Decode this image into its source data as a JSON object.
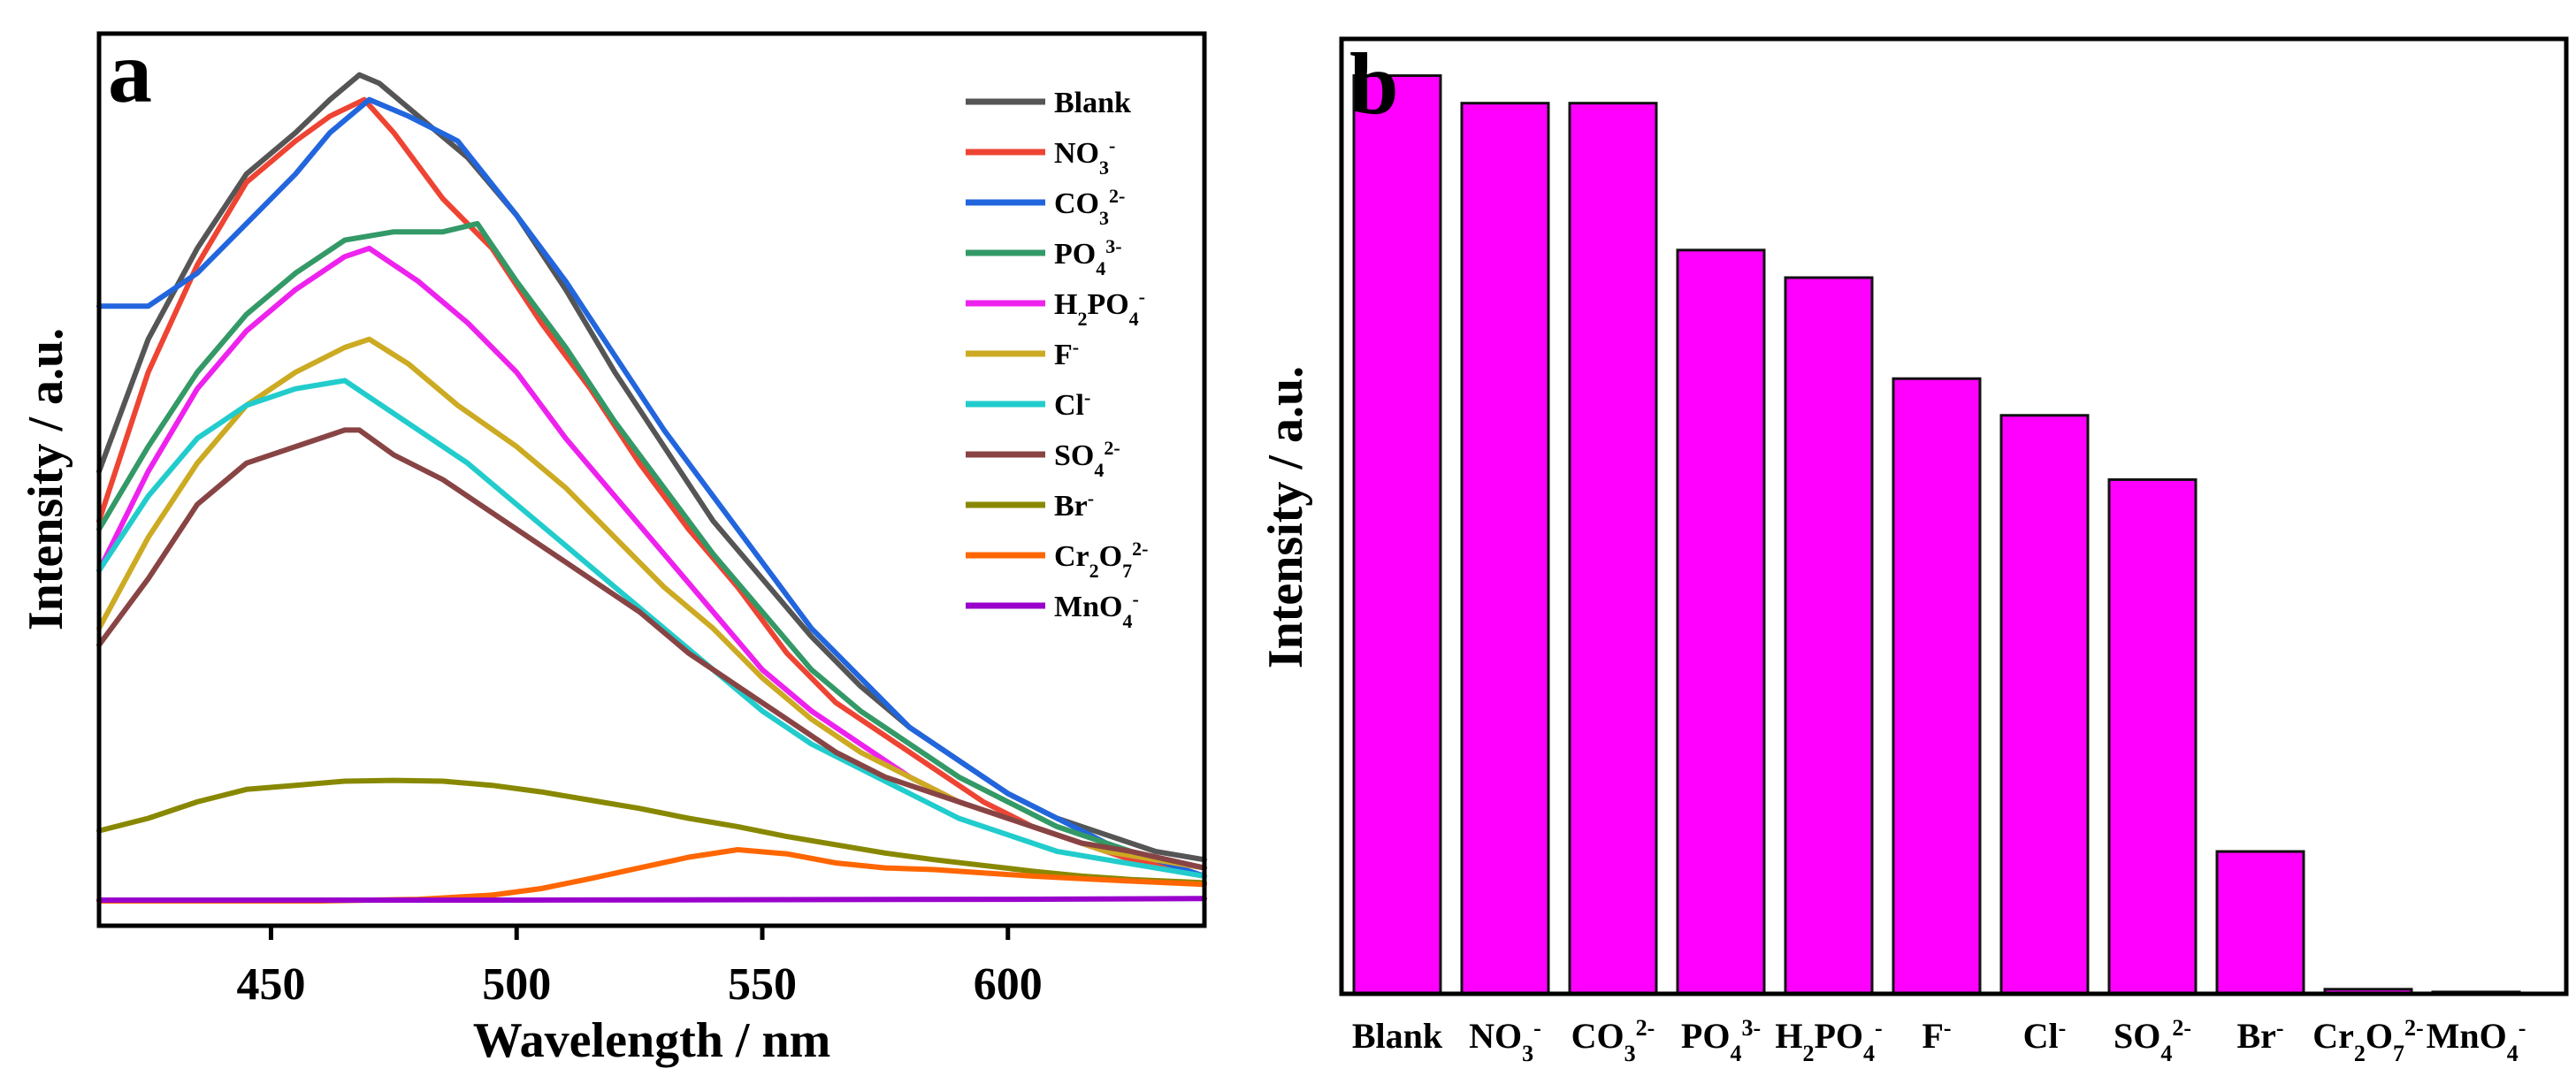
{
  "chart_data": [
    {
      "panel_label": "a",
      "type": "line",
      "xlabel": "Wavelength / nm",
      "ylabel": "Intensity / a.u.",
      "xlim": [
        415,
        640
      ],
      "ylim": [
        -0.03,
        1.05
      ],
      "x_ticks": [
        450,
        500,
        550,
        600
      ],
      "y_ticks_shown": false,
      "grid": false,
      "legend_position": "top-right",
      "series": [
        {
          "name": "Blank",
          "color": "#555555",
          "points": [
            [
              415,
              0.52
            ],
            [
              425,
              0.68
            ],
            [
              435,
              0.79
            ],
            [
              445,
              0.88
            ],
            [
              455,
              0.93
            ],
            [
              462,
              0.97
            ],
            [
              468,
              1.0
            ],
            [
              472,
              0.99
            ],
            [
              480,
              0.95
            ],
            [
              490,
              0.9
            ],
            [
              500,
              0.83
            ],
            [
              510,
              0.74
            ],
            [
              520,
              0.64
            ],
            [
              530,
              0.55
            ],
            [
              540,
              0.46
            ],
            [
              550,
              0.39
            ],
            [
              560,
              0.32
            ],
            [
              570,
              0.26
            ],
            [
              580,
              0.21
            ],
            [
              590,
              0.17
            ],
            [
              600,
              0.13
            ],
            [
              610,
              0.1
            ],
            [
              620,
              0.08
            ],
            [
              630,
              0.06
            ],
            [
              640,
              0.05
            ]
          ]
        },
        {
          "name": "NO3-",
          "color": "#ee4433",
          "points": [
            [
              415,
              0.46
            ],
            [
              425,
              0.64
            ],
            [
              435,
              0.77
            ],
            [
              445,
              0.87
            ],
            [
              455,
              0.92
            ],
            [
              462,
              0.95
            ],
            [
              469,
              0.97
            ],
            [
              475,
              0.93
            ],
            [
              485,
              0.85
            ],
            [
              495,
              0.79
            ],
            [
              505,
              0.7
            ],
            [
              515,
              0.62
            ],
            [
              525,
              0.53
            ],
            [
              535,
              0.45
            ],
            [
              545,
              0.38
            ],
            [
              555,
              0.3
            ],
            [
              565,
              0.24
            ],
            [
              575,
              0.2
            ],
            [
              585,
              0.16
            ],
            [
              595,
              0.12
            ],
            [
              605,
              0.09
            ],
            [
              615,
              0.07
            ],
            [
              625,
              0.05
            ],
            [
              640,
              0.03
            ]
          ]
        },
        {
          "name": "CO3 2-",
          "color": "#2266dd",
          "points": [
            [
              415,
              0.72
            ],
            [
              425,
              0.72
            ],
            [
              435,
              0.76
            ],
            [
              445,
              0.82
            ],
            [
              455,
              0.88
            ],
            [
              462,
              0.93
            ],
            [
              470,
              0.97
            ],
            [
              478,
              0.95
            ],
            [
              488,
              0.92
            ],
            [
              500,
              0.83
            ],
            [
              510,
              0.75
            ],
            [
              520,
              0.66
            ],
            [
              530,
              0.57
            ],
            [
              540,
              0.49
            ],
            [
              550,
              0.41
            ],
            [
              560,
              0.33
            ],
            [
              570,
              0.27
            ],
            [
              580,
              0.21
            ],
            [
              590,
              0.17
            ],
            [
              600,
              0.13
            ],
            [
              610,
              0.1
            ],
            [
              620,
              0.07
            ],
            [
              630,
              0.05
            ],
            [
              640,
              0.03
            ]
          ]
        },
        {
          "name": "PO4 3-",
          "color": "#339966",
          "points": [
            [
              415,
              0.45
            ],
            [
              425,
              0.55
            ],
            [
              435,
              0.64
            ],
            [
              445,
              0.71
            ],
            [
              455,
              0.76
            ],
            [
              465,
              0.8
            ],
            [
              475,
              0.81
            ],
            [
              485,
              0.81
            ],
            [
              492,
              0.82
            ],
            [
              500,
              0.75
            ],
            [
              510,
              0.67
            ],
            [
              520,
              0.58
            ],
            [
              530,
              0.5
            ],
            [
              540,
              0.42
            ],
            [
              550,
              0.35
            ],
            [
              560,
              0.28
            ],
            [
              570,
              0.23
            ],
            [
              580,
              0.19
            ],
            [
              590,
              0.15
            ],
            [
              600,
              0.12
            ],
            [
              610,
              0.09
            ],
            [
              620,
              0.07
            ],
            [
              630,
              0.05
            ],
            [
              640,
              0.04
            ]
          ]
        },
        {
          "name": "H2PO4-",
          "color": "#ee22ee",
          "points": [
            [
              415,
              0.4
            ],
            [
              425,
              0.52
            ],
            [
              435,
              0.62
            ],
            [
              445,
              0.69
            ],
            [
              455,
              0.74
            ],
            [
              465,
              0.78
            ],
            [
              470,
              0.79
            ],
            [
              480,
              0.75
            ],
            [
              490,
              0.7
            ],
            [
              500,
              0.64
            ],
            [
              510,
              0.56
            ],
            [
              520,
              0.49
            ],
            [
              530,
              0.42
            ],
            [
              540,
              0.35
            ],
            [
              550,
              0.28
            ],
            [
              560,
              0.23
            ],
            [
              570,
              0.19
            ],
            [
              580,
              0.15
            ],
            [
              590,
              0.12
            ],
            [
              600,
              0.1
            ],
            [
              610,
              0.08
            ],
            [
              620,
              0.06
            ],
            [
              630,
              0.05
            ],
            [
              640,
              0.04
            ]
          ]
        },
        {
          "name": "F-",
          "color": "#ccaa22",
          "points": [
            [
              415,
              0.33
            ],
            [
              425,
              0.44
            ],
            [
              435,
              0.53
            ],
            [
              445,
              0.6
            ],
            [
              455,
              0.64
            ],
            [
              465,
              0.67
            ],
            [
              470,
              0.68
            ],
            [
              478,
              0.65
            ],
            [
              488,
              0.6
            ],
            [
              500,
              0.55
            ],
            [
              510,
              0.5
            ],
            [
              520,
              0.44
            ],
            [
              530,
              0.38
            ],
            [
              540,
              0.33
            ],
            [
              550,
              0.27
            ],
            [
              560,
              0.22
            ],
            [
              570,
              0.18
            ],
            [
              580,
              0.15
            ],
            [
              590,
              0.12
            ],
            [
              600,
              0.1
            ],
            [
              610,
              0.08
            ],
            [
              620,
              0.06
            ],
            [
              630,
              0.05
            ],
            [
              640,
              0.04
            ]
          ]
        },
        {
          "name": "Cl-",
          "color": "#22cccc",
          "points": [
            [
              415,
              0.4
            ],
            [
              425,
              0.49
            ],
            [
              435,
              0.56
            ],
            [
              445,
              0.6
            ],
            [
              455,
              0.62
            ],
            [
              465,
              0.63
            ],
            [
              470,
              0.61
            ],
            [
              480,
              0.57
            ],
            [
              490,
              0.53
            ],
            [
              500,
              0.48
            ],
            [
              510,
              0.43
            ],
            [
              520,
              0.38
            ],
            [
              530,
              0.33
            ],
            [
              540,
              0.28
            ],
            [
              550,
              0.23
            ],
            [
              560,
              0.19
            ],
            [
              570,
              0.16
            ],
            [
              580,
              0.13
            ],
            [
              590,
              0.1
            ],
            [
              600,
              0.08
            ],
            [
              610,
              0.06
            ],
            [
              620,
              0.05
            ],
            [
              630,
              0.04
            ],
            [
              640,
              0.03
            ]
          ]
        },
        {
          "name": "SO4 2-",
          "color": "#884444",
          "points": [
            [
              415,
              0.31
            ],
            [
              425,
              0.39
            ],
            [
              435,
              0.48
            ],
            [
              445,
              0.53
            ],
            [
              455,
              0.55
            ],
            [
              465,
              0.57
            ],
            [
              468,
              0.57
            ],
            [
              475,
              0.54
            ],
            [
              485,
              0.51
            ],
            [
              495,
              0.47
            ],
            [
              505,
              0.43
            ],
            [
              515,
              0.39
            ],
            [
              525,
              0.35
            ],
            [
              535,
              0.3
            ],
            [
              545,
              0.26
            ],
            [
              555,
              0.22
            ],
            [
              565,
              0.18
            ],
            [
              575,
              0.15
            ],
            [
              585,
              0.13
            ],
            [
              595,
              0.11
            ],
            [
              605,
              0.09
            ],
            [
              615,
              0.07
            ],
            [
              625,
              0.06
            ],
            [
              640,
              0.04
            ]
          ]
        },
        {
          "name": "Br-",
          "color": "#888800",
          "points": [
            [
              415,
              0.085
            ],
            [
              425,
              0.1
            ],
            [
              435,
              0.12
            ],
            [
              445,
              0.135
            ],
            [
              455,
              0.14
            ],
            [
              465,
              0.145
            ],
            [
              475,
              0.146
            ],
            [
              485,
              0.145
            ],
            [
              495,
              0.14
            ],
            [
              505,
              0.132
            ],
            [
              515,
              0.122
            ],
            [
              525,
              0.112
            ],
            [
              535,
              0.1
            ],
            [
              545,
              0.09
            ],
            [
              555,
              0.078
            ],
            [
              565,
              0.068
            ],
            [
              575,
              0.058
            ],
            [
              585,
              0.05
            ],
            [
              595,
              0.043
            ],
            [
              605,
              0.036
            ],
            [
              615,
              0.03
            ],
            [
              625,
              0.026
            ],
            [
              640,
              0.022
            ]
          ]
        },
        {
          "name": "Cr2O7 2-",
          "color": "#ff6600",
          "points": [
            [
              415,
              0.0
            ],
            [
              460,
              0.0
            ],
            [
              480,
              0.002
            ],
            [
              495,
              0.007
            ],
            [
              505,
              0.015
            ],
            [
              515,
              0.027
            ],
            [
              525,
              0.04
            ],
            [
              535,
              0.053
            ],
            [
              545,
              0.062
            ],
            [
              555,
              0.057
            ],
            [
              565,
              0.046
            ],
            [
              575,
              0.04
            ],
            [
              585,
              0.038
            ],
            [
              595,
              0.034
            ],
            [
              605,
              0.03
            ],
            [
              615,
              0.027
            ],
            [
              625,
              0.024
            ],
            [
              640,
              0.02
            ]
          ]
        },
        {
          "name": "MnO4-",
          "color": "#9900cc",
          "points": [
            [
              415,
              0.001
            ],
            [
              500,
              0.001
            ],
            [
              600,
              0.002
            ],
            [
              640,
              0.003
            ]
          ]
        }
      ]
    },
    {
      "panel_label": "b",
      "type": "bar",
      "xlabel": "",
      "ylabel": "Intensity / a.u.",
      "bar_color": "#ff00ff",
      "ylim": [
        0,
        1.04
      ],
      "y_ticks_shown": false,
      "grid": false,
      "categories": [
        "Blank",
        "NO3-",
        "CO3 2-",
        "PO4 3-",
        "H2PO4-",
        "F-",
        "Cl-",
        "SO4 2-",
        "Br-",
        "Cr2O7 2-",
        "MnO4-"
      ],
      "values": [
        1.0,
        0.97,
        0.97,
        0.81,
        0.78,
        0.67,
        0.63,
        0.56,
        0.155,
        0.005,
        0.002
      ]
    }
  ]
}
